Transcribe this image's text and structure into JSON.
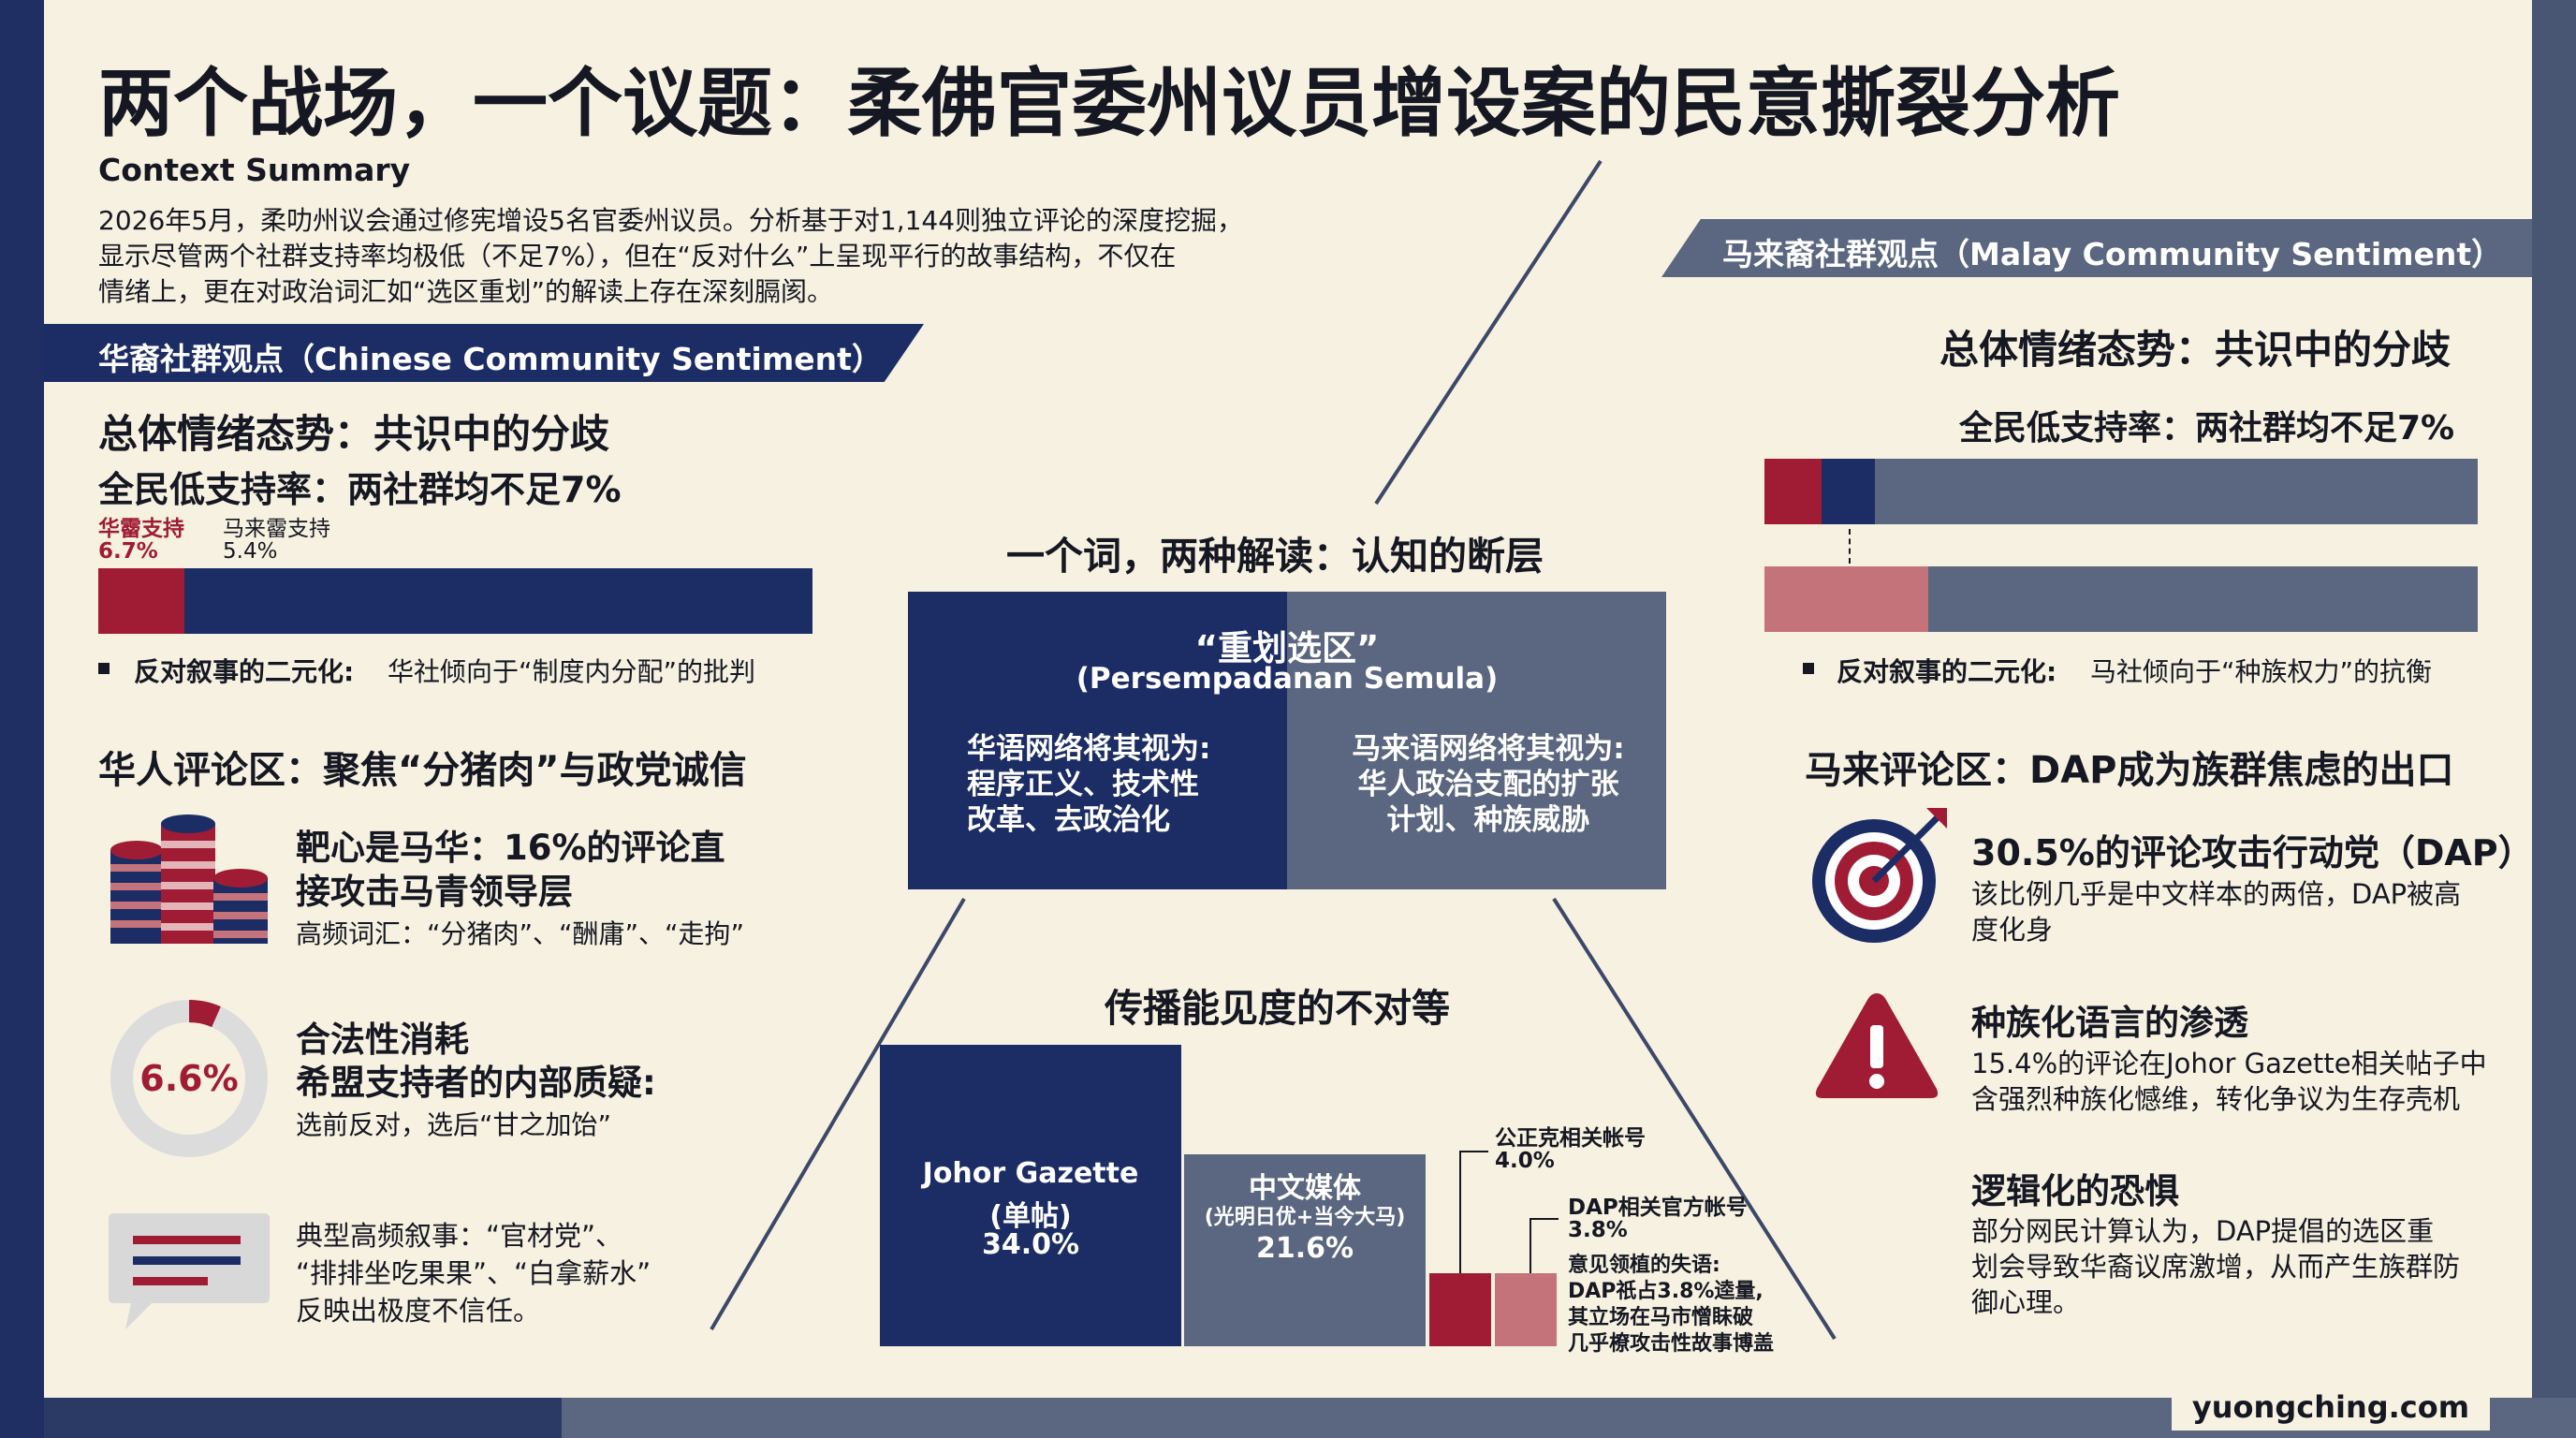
{
  "title": "两个战场，一个议题：柔佛官委州议员增设案的民意撕裂分析",
  "context": {
    "heading": "Context Summary",
    "lines": [
      "2026年5月，柔叻州议会通过修宪增设5名官委州议员。分析基于对1,144则独立评论的深度挖掘，",
      "显示尽管两个社群支持率均极低（不足7%），但在“反对什么”上呈现平行的故事结构，不仅在",
      "情绪上，更在对政治词汇如“选区重划”的解读上存在深刻膈阂。"
    ]
  },
  "left": {
    "ribbon": "华裔社群观点（Chinese Community Sentiment）",
    "sentiment_title": "总体情绪态势：共识中的分歧",
    "support_title": "全民低支持率：两社群均不足7%",
    "bar_labels": {
      "a_name": "华霤支持",
      "a_value": "6.7%",
      "b_name": "马来霤支持",
      "b_value": "5.4%"
    },
    "bar_fraction": 0.067,
    "bullet_label": "反对叙事的二元化:",
    "bullet_text": "华社倾向于“制度内分配”的批判",
    "comment_title": "华人评论区：聚焦“分猪肉”与政党诚信",
    "item1_title_l1": "靶心是马华：16%的评论直",
    "item1_title_l2": "接攻击马青领导层",
    "item1_sub": "高频词汇：“分猪肉”、“酬庸”、“走拘”",
    "donut_value": "6.6%",
    "donut_fraction": 0.066,
    "item2_title_l1": "合法性消耗",
    "item2_title_l2": "希盟支持者的内部质疑:",
    "item2_sub": "选前反对，选后“甘之加饴”",
    "item3_l1": "典型高频叙事：“官材党”、",
    "item3_l2": "“排排坐吃果果”、“白拿薪水”",
    "item3_l3": "反映出极度不信任。"
  },
  "center": {
    "word_title": "一个词，两种解读：认知的断层",
    "word_term": "“重划选区”",
    "word_term_ms": "(Persempadanan Semula)",
    "cn_view": [
      "华语网络将其视为:",
      "程序正义、技术性",
      "改革、去政治化"
    ],
    "ms_view": [
      "马来语网络将其视为:",
      "华人政治支配的扩张",
      "计划、种族威胁"
    ],
    "spread_title": "传播能见度的不对等",
    "bars": [
      {
        "name": "Johor Gazette",
        "sub": "(单帖)",
        "value": "34.0%",
        "v": 34.0
      },
      {
        "name": "中文媒体",
        "sub": "(光明日优+当今大马)",
        "value": "21.6%",
        "v": 21.6
      },
      {
        "name": "",
        "sub": "",
        "value": "",
        "v": 4.0
      },
      {
        "name": "",
        "sub": "",
        "value": "",
        "v": 3.8
      }
    ],
    "pkr_label": "公正克相关帐号",
    "pkr_value": "4.0%",
    "dap_label": "DAP相关官方帐号",
    "dap_value": "3.8%",
    "dap_note": [
      "意见领植的失语:",
      "DAP祇占3.8%逵量,",
      "其立场在马市憎眛破",
      "几乎橑攻击性故事博盖"
    ]
  },
  "right": {
    "ribbon": "马来裔社群观点（Malay Community Sentiment）",
    "sentiment_title": "总体情绪态势：共识中的分歧",
    "support_title": "全民低支持率：两社群均不足7%",
    "bar1_red": 0.08,
    "bar1_navy": 0.075,
    "bar2_pink": 0.23,
    "bullet_label": "反对叙事的二元化:",
    "bullet_text": "马社倾向于“种族权力”的抗衡",
    "comment_title": "马来评论区：DAP成为族群焦虑的出口",
    "item1_title": "30.5%的评论攻击行动党（DAP）",
    "item1_l1": "该比例几乎是中文样本的两倍，DAP被高",
    "item1_l2": "度化身",
    "item2_title": "种族化语言的渗透",
    "item2_l1": "15.4%的评论在Johor Gazette相关帖子中",
    "item2_l2": "含强烈种族化憾维，转化争议为生存壳机",
    "item3_title": "逻辑化的恐惧",
    "item3_l1": "部分网民计算认为，DAP提倡的选区重",
    "item3_l2": "划会导致华裔议席激增，从而产生族群防",
    "item3_l3": "御心理。"
  },
  "footer": {
    "site": "yuongching.com"
  },
  "colors": {
    "navy": "#1c2d66",
    "crimson": "#a01c35",
    "slate": "#5b6680",
    "pink": "#c4737b",
    "cream": "#f7f1e1"
  }
}
